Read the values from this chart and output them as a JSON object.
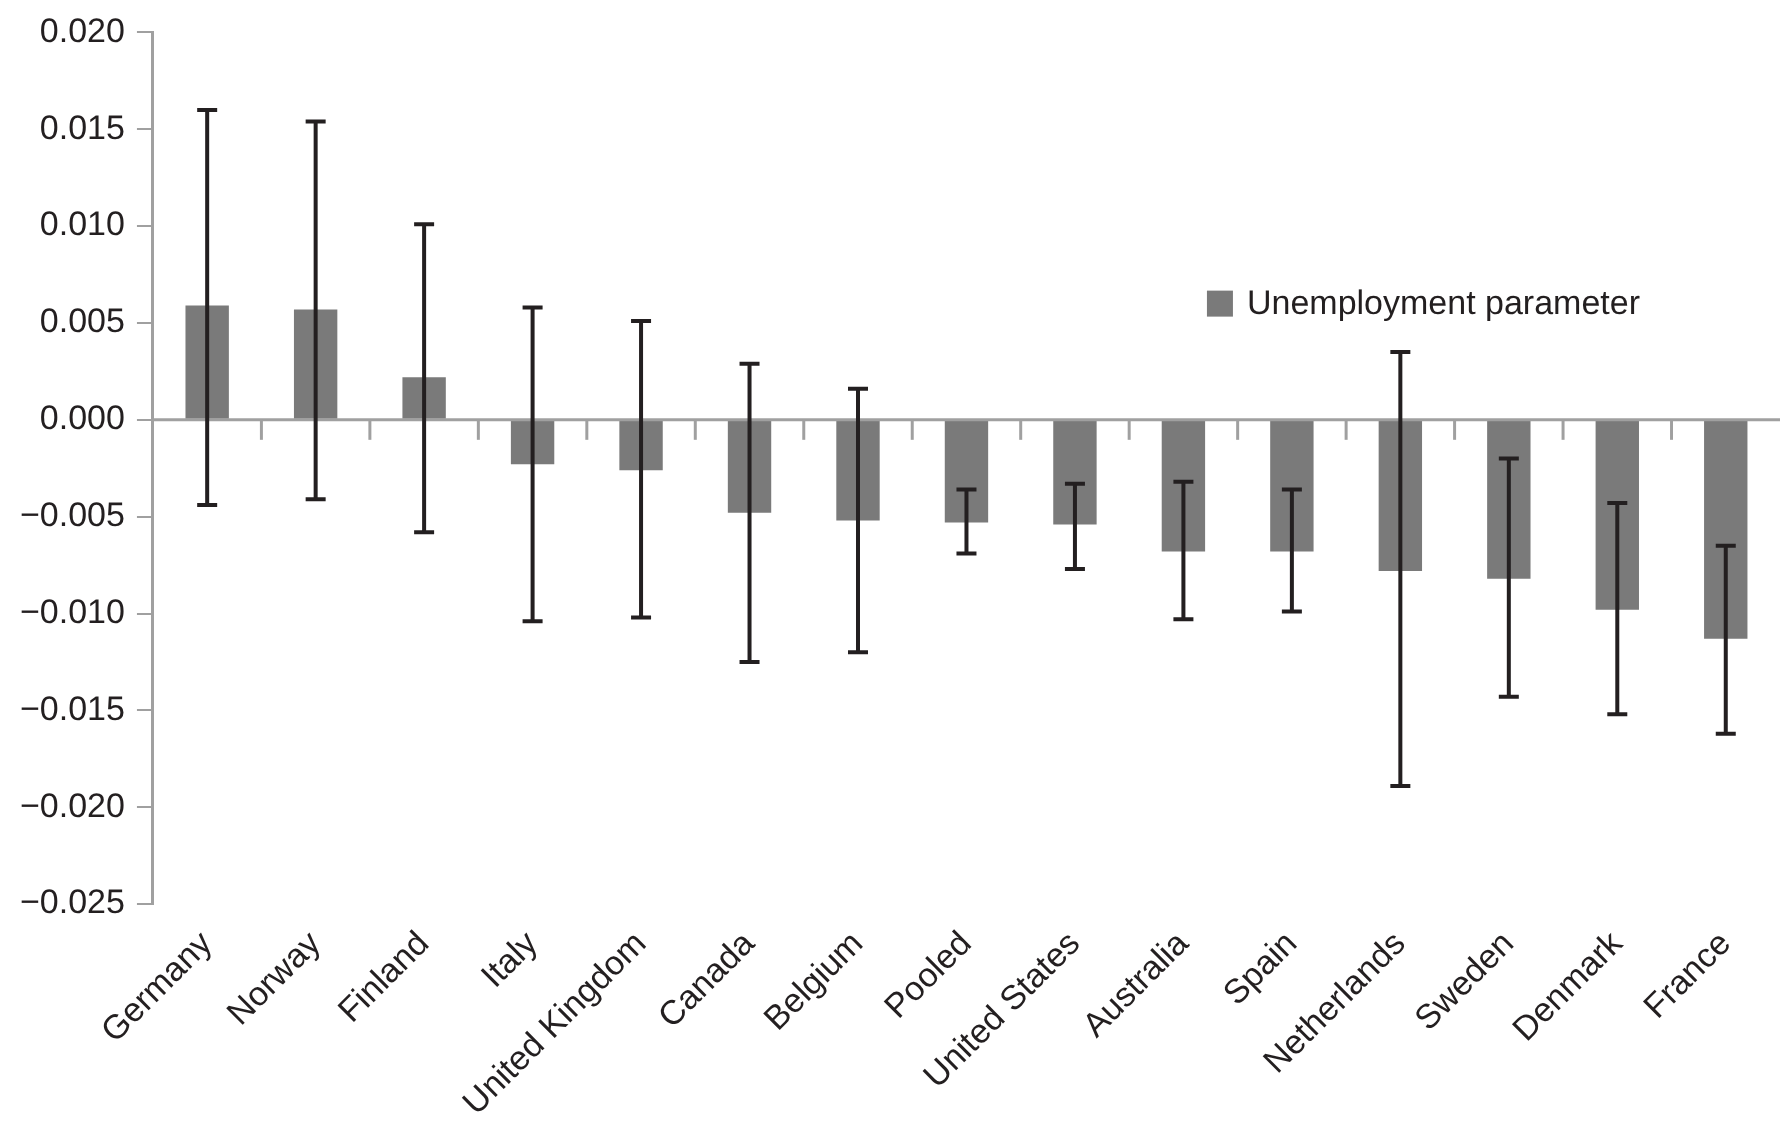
{
  "chart_data": {
    "type": "bar",
    "categories": [
      "Germany",
      "Norway",
      "Finland",
      "Italy",
      "United Kingdom",
      "Canada",
      "Belgium",
      "Pooled",
      "United States",
      "Australia",
      "Spain",
      "Netherlands",
      "Sweden",
      "Denmark",
      "France"
    ],
    "series": [
      {
        "name": "Unemployment parameter",
        "color": "#7a7a7a",
        "values": [
          0.0059,
          0.0057,
          0.0022,
          -0.0023,
          -0.0026,
          -0.0048,
          -0.0052,
          -0.0053,
          -0.0054,
          -0.0068,
          -0.0068,
          -0.0078,
          -0.0082,
          -0.0098,
          -0.0113
        ],
        "errors": [
          [
            -0.0044,
            0.016
          ],
          [
            -0.0041,
            0.0154
          ],
          [
            -0.0058,
            0.0101
          ],
          [
            -0.0104,
            0.0058
          ],
          [
            -0.0102,
            0.0051
          ],
          [
            -0.0125,
            0.0029
          ],
          [
            -0.012,
            0.0016
          ],
          [
            -0.0069,
            -0.0036
          ],
          [
            -0.0077,
            -0.0033
          ],
          [
            -0.0103,
            -0.0032
          ],
          [
            -0.0099,
            -0.0036
          ],
          [
            -0.0189,
            0.0035
          ],
          [
            -0.0143,
            -0.002
          ],
          [
            -0.0152,
            -0.0043
          ],
          [
            -0.0162,
            -0.0065
          ]
        ]
      }
    ],
    "ylim": [
      -0.025,
      0.02
    ],
    "yticks": [
      {
        "value": -0.025,
        "label": "−0.025"
      },
      {
        "value": -0.02,
        "label": "−0.020"
      },
      {
        "value": -0.015,
        "label": "−0.015"
      },
      {
        "value": -0.01,
        "label": "−0.010"
      },
      {
        "value": -0.005,
        "label": "−0.005"
      },
      {
        "value": 0,
        "label": "0.000"
      },
      {
        "value": 0.005,
        "label": "0.005"
      },
      {
        "value": 0.01,
        "label": "0.010"
      },
      {
        "value": 0.015,
        "label": "0.015"
      },
      {
        "value": 0.02,
        "label": "0.020"
      }
    ],
    "legend": "right"
  }
}
